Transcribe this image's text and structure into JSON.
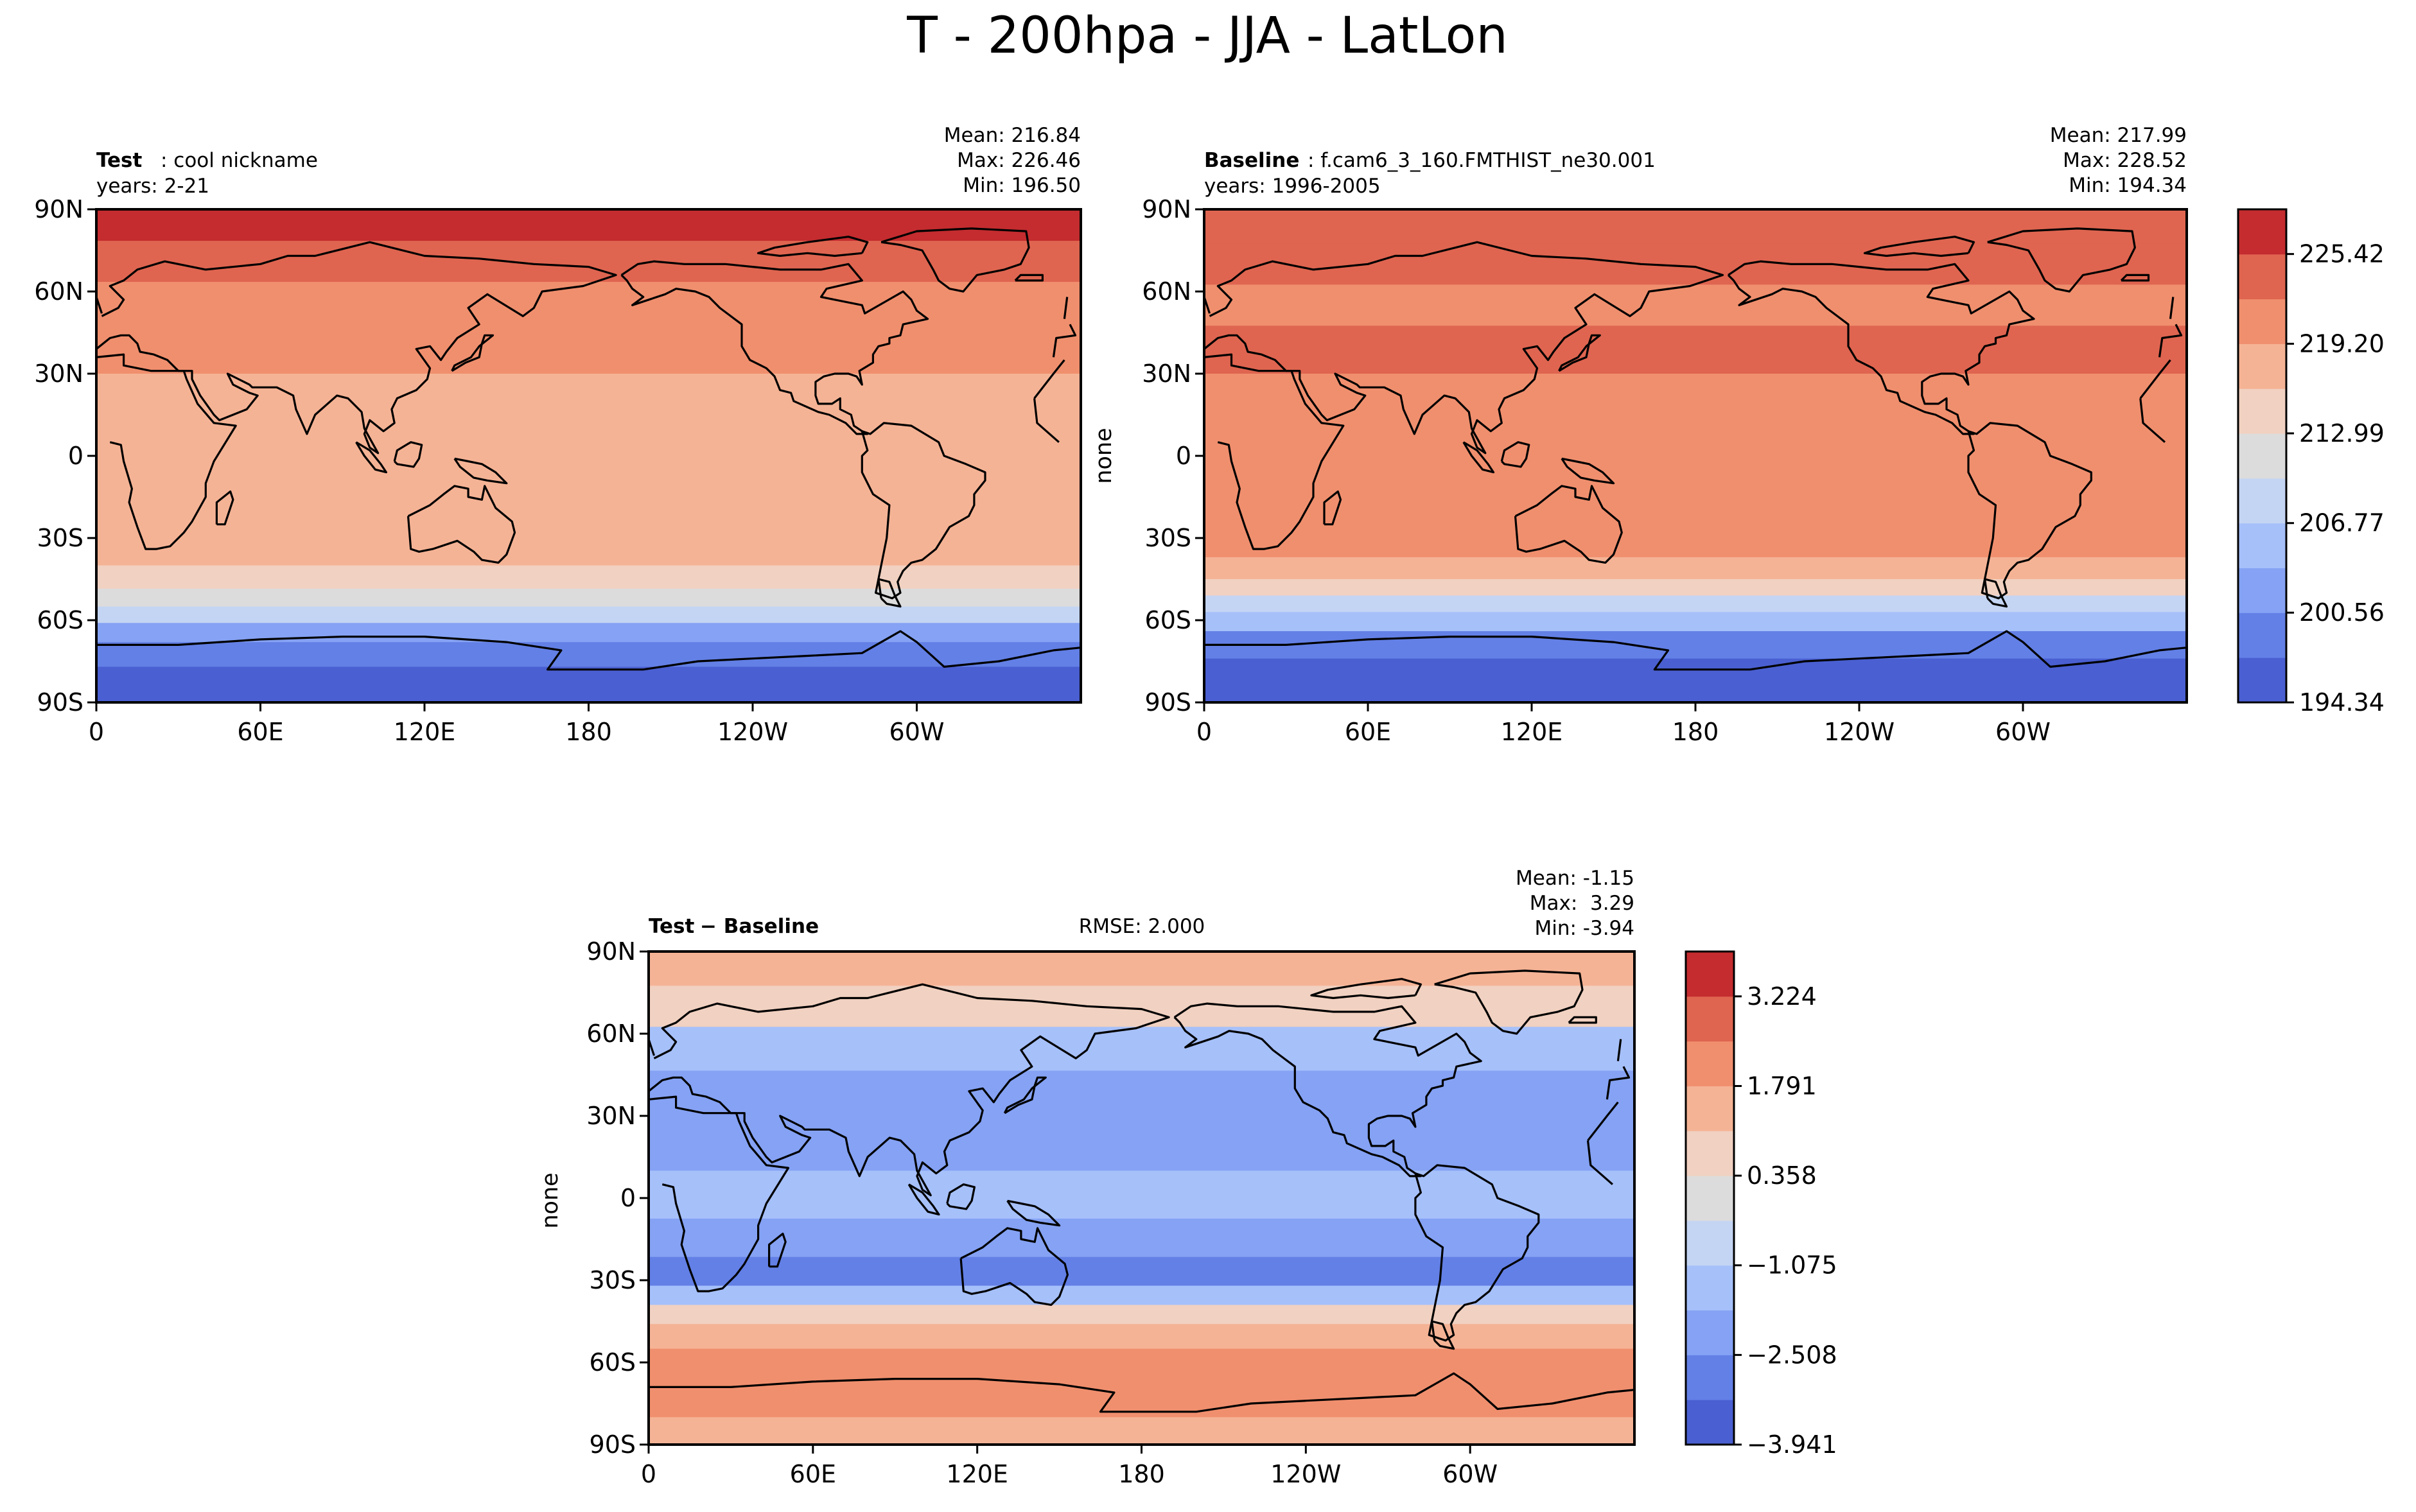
{
  "figure": {
    "title": "T - 200hpa - JJA - LatLon"
  },
  "chart_data": [
    {
      "type": "heatmap",
      "panel": "test",
      "title_bold": "Test",
      "title_rest": ": cool nickname",
      "years": "years: 2-21",
      "stats": [
        "Mean: 216.84",
        "Max: 226.46",
        "Min: 196.50"
      ],
      "ylabel": "",
      "xticks": [
        "0",
        "60E",
        "120E",
        "180",
        "120W",
        "60W"
      ],
      "yticks": [
        "90N",
        "60N",
        "30N",
        "0",
        "30S",
        "60S",
        "90S"
      ],
      "xlim": [
        0,
        360
      ],
      "ylim": [
        -90,
        90
      ],
      "levels": [
        194.34,
        197.45,
        200.56,
        203.67,
        206.77,
        209.88,
        212.99,
        216.1,
        219.2,
        222.31,
        225.42,
        228.52
      ],
      "zones": [
        {
          "lat": 85,
          "value": 226.0
        },
        {
          "lat": 72,
          "value": 223.5
        },
        {
          "lat": 55,
          "value": 220.5
        },
        {
          "lat": 40,
          "value": 221.0
        },
        {
          "lat": 20,
          "value": 218.5
        },
        {
          "lat": 0,
          "value": 218.0
        },
        {
          "lat": -20,
          "value": 218.5
        },
        {
          "lat": -35,
          "value": 219.0
        },
        {
          "lat": -45,
          "value": 215.5
        },
        {
          "lat": -52,
          "value": 212.0
        },
        {
          "lat": -58,
          "value": 207.0
        },
        {
          "lat": -64,
          "value": 203.0
        },
        {
          "lat": -72,
          "value": 199.0
        },
        {
          "lat": -82,
          "value": 197.0
        }
      ]
    },
    {
      "type": "heatmap",
      "panel": "baseline",
      "title_bold": "Baseline",
      "title_rest": ": f.cam6_3_160.FMTHIST_ne30.001",
      "years": "years: 1996-2005",
      "stats": [
        "Mean: 217.99",
        "Max: 228.52",
        "Min: 194.34"
      ],
      "ylabel": "none",
      "xticks": [
        "0",
        "60E",
        "120E",
        "180",
        "120W",
        "60W"
      ],
      "yticks": [
        "90N",
        "60N",
        "30N",
        "0",
        "30S",
        "60S",
        "90S"
      ],
      "xlim": [
        0,
        360
      ],
      "ylim": [
        -90,
        90
      ],
      "levels": [
        194.34,
        197.45,
        200.56,
        203.67,
        206.77,
        209.88,
        212.99,
        216.1,
        219.2,
        222.31,
        225.42,
        228.52
      ],
      "colorbar_ticks": [
        "194.34",
        "200.56",
        "206.77",
        "212.99",
        "219.20",
        "225.42"
      ],
      "zones": [
        {
          "lat": 85,
          "value": 224.0
        },
        {
          "lat": 70,
          "value": 223.0
        },
        {
          "lat": 55,
          "value": 221.0
        },
        {
          "lat": 40,
          "value": 223.0
        },
        {
          "lat": 20,
          "value": 220.5
        },
        {
          "lat": 0,
          "value": 220.0
        },
        {
          "lat": -20,
          "value": 220.5
        },
        {
          "lat": -32,
          "value": 222.0
        },
        {
          "lat": -42,
          "value": 219.0
        },
        {
          "lat": -48,
          "value": 213.0
        },
        {
          "lat": -54,
          "value": 209.0
        },
        {
          "lat": -60,
          "value": 204.0
        },
        {
          "lat": -68,
          "value": 199.0
        },
        {
          "lat": -80,
          "value": 196.0
        }
      ]
    },
    {
      "type": "heatmap",
      "panel": "difference",
      "title_bold": "Test",
      "title_rest": " − Baseline",
      "rmse": "RMSE: 2.000",
      "stats": [
        "Mean: -1.15",
        "Max:  3.29",
        "Min: -3.94"
      ],
      "ylabel": "none",
      "xticks": [
        "0",
        "60E",
        "120E",
        "180",
        "120W",
        "60W"
      ],
      "yticks": [
        "90N",
        "60N",
        "30N",
        "0",
        "30S",
        "60S",
        "90S"
      ],
      "xlim": [
        0,
        360
      ],
      "ylim": [
        -90,
        90
      ],
      "levels": [
        -3.941,
        -3.225,
        -2.508,
        -1.792,
        -1.075,
        -0.358,
        0.358,
        1.075,
        1.791,
        2.508,
        3.224,
        3.941
      ],
      "colorbar_ticks": [
        "−3.941",
        "−2.508",
        "−1.075",
        "0.358",
        "1.791",
        "3.224"
      ],
      "zones": [
        {
          "lat": 85,
          "value": 1.4
        },
        {
          "lat": 70,
          "value": 0.4
        },
        {
          "lat": 55,
          "value": -1.2
        },
        {
          "lat": 38,
          "value": -2.3
        },
        {
          "lat": 20,
          "value": -1.9
        },
        {
          "lat": 0,
          "value": -1.6
        },
        {
          "lat": -15,
          "value": -2.0
        },
        {
          "lat": -28,
          "value": -2.6
        },
        {
          "lat": -36,
          "value": -1.2
        },
        {
          "lat": -42,
          "value": 0.6
        },
        {
          "lat": -50,
          "value": 1.6
        },
        {
          "lat": -60,
          "value": 2.2
        },
        {
          "lat": -75,
          "value": 2.0
        },
        {
          "lat": -85,
          "value": 1.5
        }
      ]
    }
  ],
  "colors": [
    "#4a5fd1",
    "#6380e6",
    "#85a2f4",
    "#a6c0fa",
    "#c4d5f3",
    "#dcdcdc",
    "#f1d1c1",
    "#f5b395",
    "#f08f6e",
    "#df6550",
    "#c42c2f"
  ]
}
